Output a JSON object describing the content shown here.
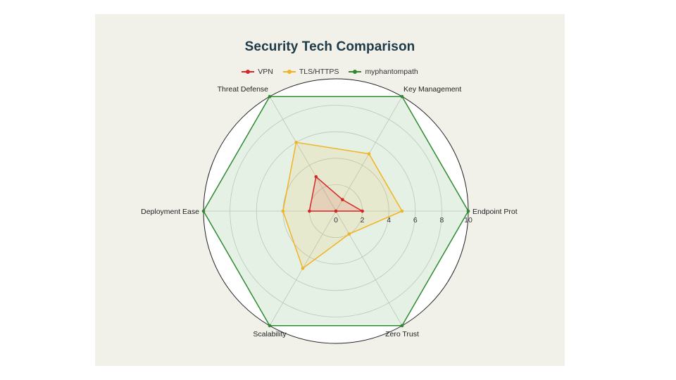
{
  "chart_data": {
    "type": "radar",
    "title": "Security Tech Comparison",
    "axes": [
      "Endpoint Prot",
      "Key Management",
      "Threat Defense",
      "Deployment Ease",
      "Scalability",
      "Zero Trust"
    ],
    "rlim": [
      0,
      10
    ],
    "r_ticks": [
      0,
      2,
      4,
      6,
      8,
      10
    ],
    "grid": true,
    "legend_position": "top-center",
    "series": [
      {
        "name": "VPN",
        "color": "#d62728",
        "values": [
          2,
          1,
          3,
          2,
          0,
          0
        ]
      },
      {
        "name": "TLS/HTTPS",
        "color": "#f0b323",
        "values": [
          5,
          5,
          6,
          4,
          5,
          2
        ]
      },
      {
        "name": "myphantompath",
        "color": "#2f8a2f",
        "values": [
          10,
          10,
          10,
          10,
          10,
          10
        ]
      }
    ]
  }
}
